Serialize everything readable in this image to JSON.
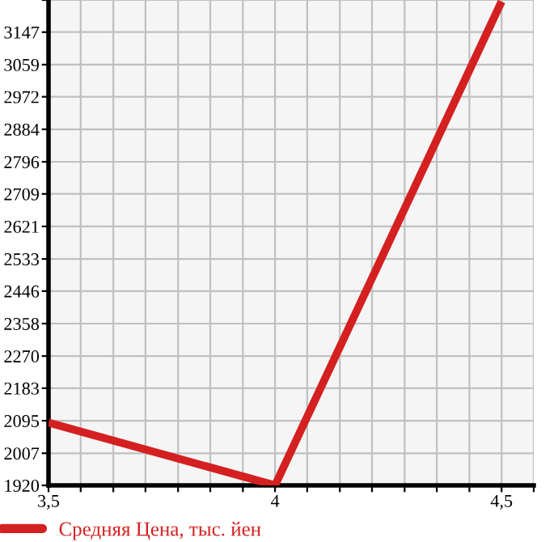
{
  "chart_data": {
    "type": "line",
    "x": [
      3.5,
      4,
      4.5
    ],
    "series": [
      {
        "name": "Средняя Цена, тыс. йен",
        "color": "#d42020",
        "values": [
          2090,
          1920,
          3230
        ]
      }
    ],
    "xlim": [
      3.5,
      4.571
    ],
    "xticks": [
      {
        "value": 3.5,
        "label": "3,5"
      },
      {
        "value": 3.571,
        "label": null
      },
      {
        "value": 3.643,
        "label": null
      },
      {
        "value": 3.714,
        "label": null
      },
      {
        "value": 3.786,
        "label": null
      },
      {
        "value": 3.857,
        "label": null
      },
      {
        "value": 3.929,
        "label": null
      },
      4,
      {
        "value": 4.071,
        "label": null
      },
      {
        "value": 4.143,
        "label": null
      },
      {
        "value": 4.214,
        "label": null
      },
      {
        "value": 4.286,
        "label": null
      },
      {
        "value": 4.357,
        "label": null
      },
      {
        "value": 4.429,
        "label": null
      },
      {
        "value": 4.5,
        "label": "4,5"
      },
      {
        "value": 4.571,
        "label": null
      }
    ],
    "ylim": [
      1920,
      3234
    ],
    "yticks": [
      1920,
      2007,
      2095,
      2183,
      2270,
      2358,
      2446,
      2533,
      2621,
      2709,
      2796,
      2884,
      2972,
      3059,
      3147,
      {
        "value": 3234,
        "label": null
      }
    ],
    "grid": true,
    "legend": "bottom",
    "marker": "none",
    "line_style": "solid"
  }
}
